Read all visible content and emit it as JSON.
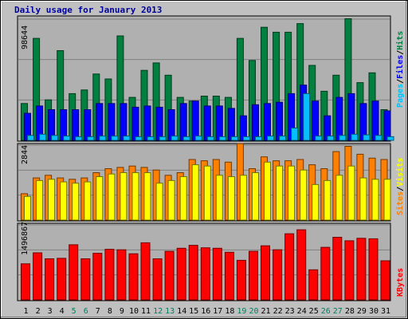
{
  "chart_data": {
    "type": "bar",
    "title": "Daily usage for January 2013",
    "categories": [
      "1",
      "2",
      "3",
      "4",
      "5",
      "6",
      "7",
      "8",
      "9",
      "10",
      "11",
      "12",
      "13",
      "14",
      "15",
      "16",
      "17",
      "18",
      "19",
      "20",
      "21",
      "22",
      "23",
      "24",
      "25",
      "26",
      "27",
      "28",
      "29",
      "30",
      "31"
    ],
    "weekend_days": [
      "5",
      "6",
      "12",
      "13",
      "19",
      "20",
      "26",
      "27"
    ],
    "panels": [
      {
        "id": "top",
        "ymax": 98644,
        "ymax_label": "98644",
        "vertical_label": [
          "Pages",
          "/",
          "Files",
          "/",
          "Hits"
        ],
        "series": [
          {
            "name": "Hits",
            "color": "#008040",
            "values": [
              30000,
              83000,
              33000,
              73000,
              38000,
              41000,
              54000,
              50000,
              85000,
              35000,
              57000,
              63000,
              53000,
              35000,
              32000,
              36000,
              36000,
              35000,
              83000,
              65000,
              92000,
              88000,
              88000,
              95000,
              61000,
              40000,
              53000,
              99000,
              47000,
              55000,
              25000
            ]
          },
          {
            "name": "Files",
            "color": "#0000ff",
            "values": [
              22000,
              28000,
              25000,
              25000,
              25000,
              25000,
              30000,
              30000,
              30000,
              27000,
              28000,
              27000,
              25000,
              30000,
              32000,
              28000,
              28000,
              26000,
              20000,
              29000,
              30000,
              31000,
              38000,
              45000,
              32000,
              20000,
              35000,
              38000,
              30000,
              32000,
              24000
            ]
          },
          {
            "name": "Pages",
            "color": "#00c0ff",
            "values": [
              4000,
              5000,
              4000,
              3500,
              3000,
              3000,
              3500,
              3500,
              3500,
              3000,
              3000,
              3000,
              3500,
              3000,
              3500,
              3000,
              3000,
              3000,
              3000,
              3000,
              3500,
              3500,
              10000,
              38000,
              3500,
              3500,
              4000,
              5000,
              4500,
              4000,
              3000
            ]
          }
        ]
      },
      {
        "id": "mid",
        "ymax": 2844,
        "ymax_label": "2844",
        "vertical_label": [
          "Sites",
          "/",
          "Visits"
        ],
        "series": [
          {
            "name": "Sites",
            "color": "#ff8000",
            "values": [
              1000,
              1600,
              1700,
              1600,
              1550,
              1600,
              1800,
              1950,
              2000,
              2050,
              2000,
              1900,
              1700,
              1800,
              2300,
              2250,
              2300,
              2200,
              2900,
              1950,
              2400,
              2250,
              2250,
              2300,
              2100,
              1950,
              2600,
              2800,
              2500,
              2350,
              2300
            ]
          },
          {
            "name": "Visits",
            "color": "#ffff00",
            "values": [
              900,
              1500,
              1550,
              1450,
              1400,
              1450,
              1650,
              1750,
              1800,
              1800,
              1800,
              1400,
              1500,
              1650,
              2100,
              2050,
              1700,
              1650,
              1700,
              1800,
              2200,
              2050,
              2050,
              1900,
              1350,
              1500,
              1700,
              2050,
              1600,
              1550,
              1550
            ]
          }
        ]
      },
      {
        "id": "bot",
        "ymax": 1496867,
        "ymax_label": "1496867",
        "vertical_label": [
          "KBytes"
        ],
        "series": [
          {
            "name": "KBytes",
            "color": "#ff0000",
            "values": [
              720000,
              940000,
              820000,
              830000,
              1100000,
              820000,
              930000,
              1010000,
              1000000,
              920000,
              1140000,
              820000,
              970000,
              1030000,
              1090000,
              1040000,
              1030000,
              950000,
              790000,
              970000,
              1080000,
              1000000,
              1320000,
              1400000,
              600000,
              1050000,
              1250000,
              1180000,
              1230000,
              1220000,
              780000
            ]
          }
        ]
      }
    ]
  }
}
